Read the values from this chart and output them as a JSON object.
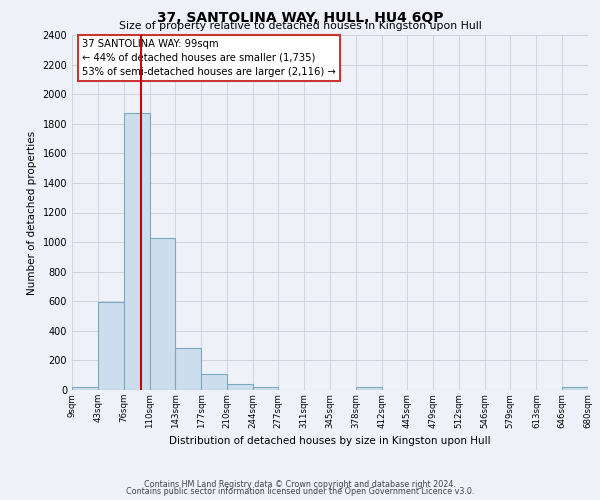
{
  "title": "37, SANTOLINA WAY, HULL, HU4 6QP",
  "subtitle": "Size of property relative to detached houses in Kingston upon Hull",
  "xlabel": "Distribution of detached houses by size in Kingston upon Hull",
  "ylabel": "Number of detached properties",
  "bin_edges": [
    9,
    43,
    76,
    110,
    143,
    177,
    210,
    244,
    277,
    311,
    345,
    378,
    412,
    445,
    479,
    512,
    546,
    579,
    613,
    646,
    680
  ],
  "bar_heights": [
    20,
    595,
    1870,
    1030,
    285,
    105,
    40,
    20,
    0,
    0,
    0,
    20,
    0,
    0,
    0,
    0,
    0,
    0,
    0,
    20
  ],
  "bar_color": "#ccdded",
  "bar_edge_color": "#7aaabb",
  "annotation_line1": "37 SANTOLINA WAY: 99sqm",
  "annotation_line2": "← 44% of detached houses are smaller (1,735)",
  "annotation_line3": "53% of semi-detached houses are larger (2,116) →",
  "vline_x": 99,
  "vline_color": "#cc0000",
  "ylim": [
    0,
    2400
  ],
  "yticks": [
    0,
    200,
    400,
    600,
    800,
    1000,
    1200,
    1400,
    1600,
    1800,
    2000,
    2200,
    2400
  ],
  "footer_line1": "Contains HM Land Registry data © Crown copyright and database right 2024.",
  "footer_line2": "Contains public sector information licensed under the Open Government Licence v3.0.",
  "background_color": "#eef2f8",
  "grid_color": "#c8d0dc",
  "ann_box_edge_color": "#cc3333"
}
